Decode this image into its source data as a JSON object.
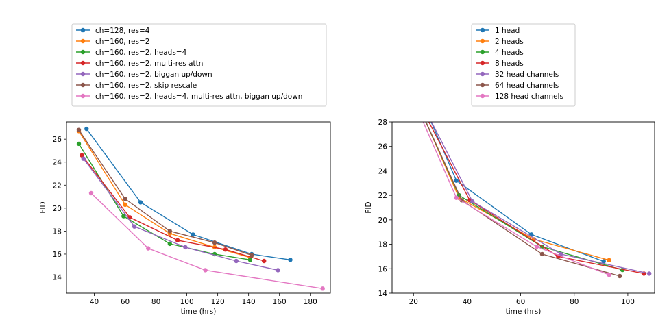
{
  "chart_data": [
    {
      "type": "line",
      "xlabel": "time (hrs)",
      "ylabel": "FID",
      "xlim": [
        22,
        193
      ],
      "ylim": [
        12.6,
        27.5
      ],
      "xticks": [
        40,
        60,
        80,
        100,
        120,
        140,
        160,
        180
      ],
      "yticks": [
        14,
        16,
        18,
        20,
        22,
        24,
        26
      ],
      "grid": false,
      "legend_position": "above",
      "series": [
        {
          "name": "ch=128, res=4",
          "color": "#1f77b4",
          "x": [
            35,
            70,
            104,
            142,
            167
          ],
          "y": [
            26.9,
            20.5,
            17.7,
            16.0,
            15.5
          ]
        },
        {
          "name": "ch=160, res=2",
          "color": "#ff7f0e",
          "x": [
            30,
            60,
            89,
            118,
            141
          ],
          "y": [
            26.7,
            20.3,
            17.8,
            16.6,
            15.7
          ]
        },
        {
          "name": "ch=160, res=2, heads=4",
          "color": "#2ca02c",
          "x": [
            30,
            59,
            89,
            118,
            141
          ],
          "y": [
            25.6,
            19.3,
            16.9,
            16.0,
            15.5
          ]
        },
        {
          "name": "ch=160, res=2, multi-res attn",
          "color": "#d62728",
          "x": [
            32,
            63,
            94,
            125,
            150
          ],
          "y": [
            24.6,
            19.2,
            17.2,
            16.4,
            15.4
          ]
        },
        {
          "name": "ch=160, res=2, biggan up/down",
          "color": "#9467bd",
          "x": [
            33,
            66,
            99,
            132,
            159
          ],
          "y": [
            24.3,
            18.4,
            16.6,
            15.4,
            14.6
          ]
        },
        {
          "name": "ch=160, res=2, skip rescale",
          "color": "#8c564b",
          "x": [
            30,
            60,
            89,
            118,
            142
          ],
          "y": [
            26.8,
            20.8,
            18.0,
            17.0,
            15.9
          ]
        },
        {
          "name": "ch=160, res=2, heads=4, multi-res attn, biggan up/down",
          "color": "#e377c2",
          "x": [
            38,
            75,
            112,
            188
          ],
          "y": [
            21.3,
            16.5,
            14.6,
            13.0
          ]
        }
      ]
    },
    {
      "type": "line",
      "xlabel": "time (hrs)",
      "ylabel": "FID",
      "xlim": [
        12,
        110
      ],
      "ylim": [
        14,
        28
      ],
      "xticks": [
        20,
        40,
        60,
        80,
        100
      ],
      "yticks": [
        14,
        16,
        18,
        20,
        22,
        24,
        26,
        28
      ],
      "grid": false,
      "legend_position": "above",
      "series": [
        {
          "name": "1 head",
          "color": "#1f77b4",
          "x": [
            26,
            36,
            64,
            91
          ],
          "y": [
            28.3,
            23.2,
            18.8,
            16.6
          ]
        },
        {
          "name": "2 heads",
          "color": "#ff7f0e",
          "x": [
            24,
            37,
            65,
            93
          ],
          "y": [
            28.3,
            21.8,
            18.4,
            16.7
          ]
        },
        {
          "name": "4 heads",
          "color": "#2ca02c",
          "x": [
            24,
            37,
            68,
            98
          ],
          "y": [
            28.3,
            22.0,
            17.8,
            15.9
          ]
        },
        {
          "name": "8 heads",
          "color": "#d62728",
          "x": [
            25,
            41,
            74,
            106
          ],
          "y": [
            28.3,
            21.6,
            17.0,
            15.6
          ]
        },
        {
          "name": "32 head channels",
          "color": "#9467bd",
          "x": [
            26,
            42,
            75,
            108
          ],
          "y": [
            28.3,
            21.5,
            17.2,
            15.6
          ]
        },
        {
          "name": "64 head channels",
          "color": "#8c564b",
          "x": [
            24,
            38,
            68,
            97
          ],
          "y": [
            28.3,
            21.6,
            17.2,
            15.4
          ]
        },
        {
          "name": "128 head channels",
          "color": "#e377c2",
          "x": [
            23,
            36,
            66,
            93
          ],
          "y": [
            28.3,
            21.8,
            17.8,
            15.5
          ]
        }
      ]
    }
  ]
}
